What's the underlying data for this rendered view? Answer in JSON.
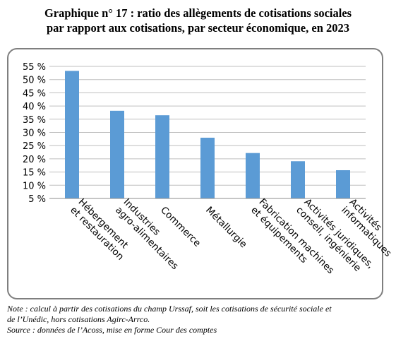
{
  "title_line1": "Graphique n° 17 : ratio des allègements de cotisations sociales",
  "title_line2": "par rapport aux cotisations, par secteur économique, en 2023",
  "note_line1": "Note : calcul à partir des cotisations du champ Urssaf, soit les cotisations de sécurité sociale et",
  "note_line2": "de l’Unédic, hors cotisations Agirc-Arrco.",
  "source_line": "Source : données de l’Acoss, mise en forme Cour des comptes",
  "chart_data": {
    "type": "bar",
    "categories": [
      [
        "Hébergement",
        "et restauration"
      ],
      [
        "Industries",
        "agro-alimentaires"
      ],
      [
        "Commerce"
      ],
      [
        "Métallurgie"
      ],
      [
        "Fabrication machines",
        "et équipements"
      ],
      [
        "Activités juridiques,",
        "conseil, ingénierie"
      ],
      [
        "Activités",
        "informatiques"
      ]
    ],
    "values": [
      53.3,
      38.2,
      36.5,
      28.0,
      22.2,
      19.1,
      15.7
    ],
    "ylim": [
      5,
      55
    ],
    "yticks": [
      "5 %",
      "10 %",
      "15 %",
      "20 %",
      "25 %",
      "30 %",
      "35 %",
      "40 %",
      "45 %",
      "50 %",
      "55 %"
    ],
    "grid": true,
    "bar_color": "#5b9bd5",
    "grid_color": "#bfbfbf"
  }
}
